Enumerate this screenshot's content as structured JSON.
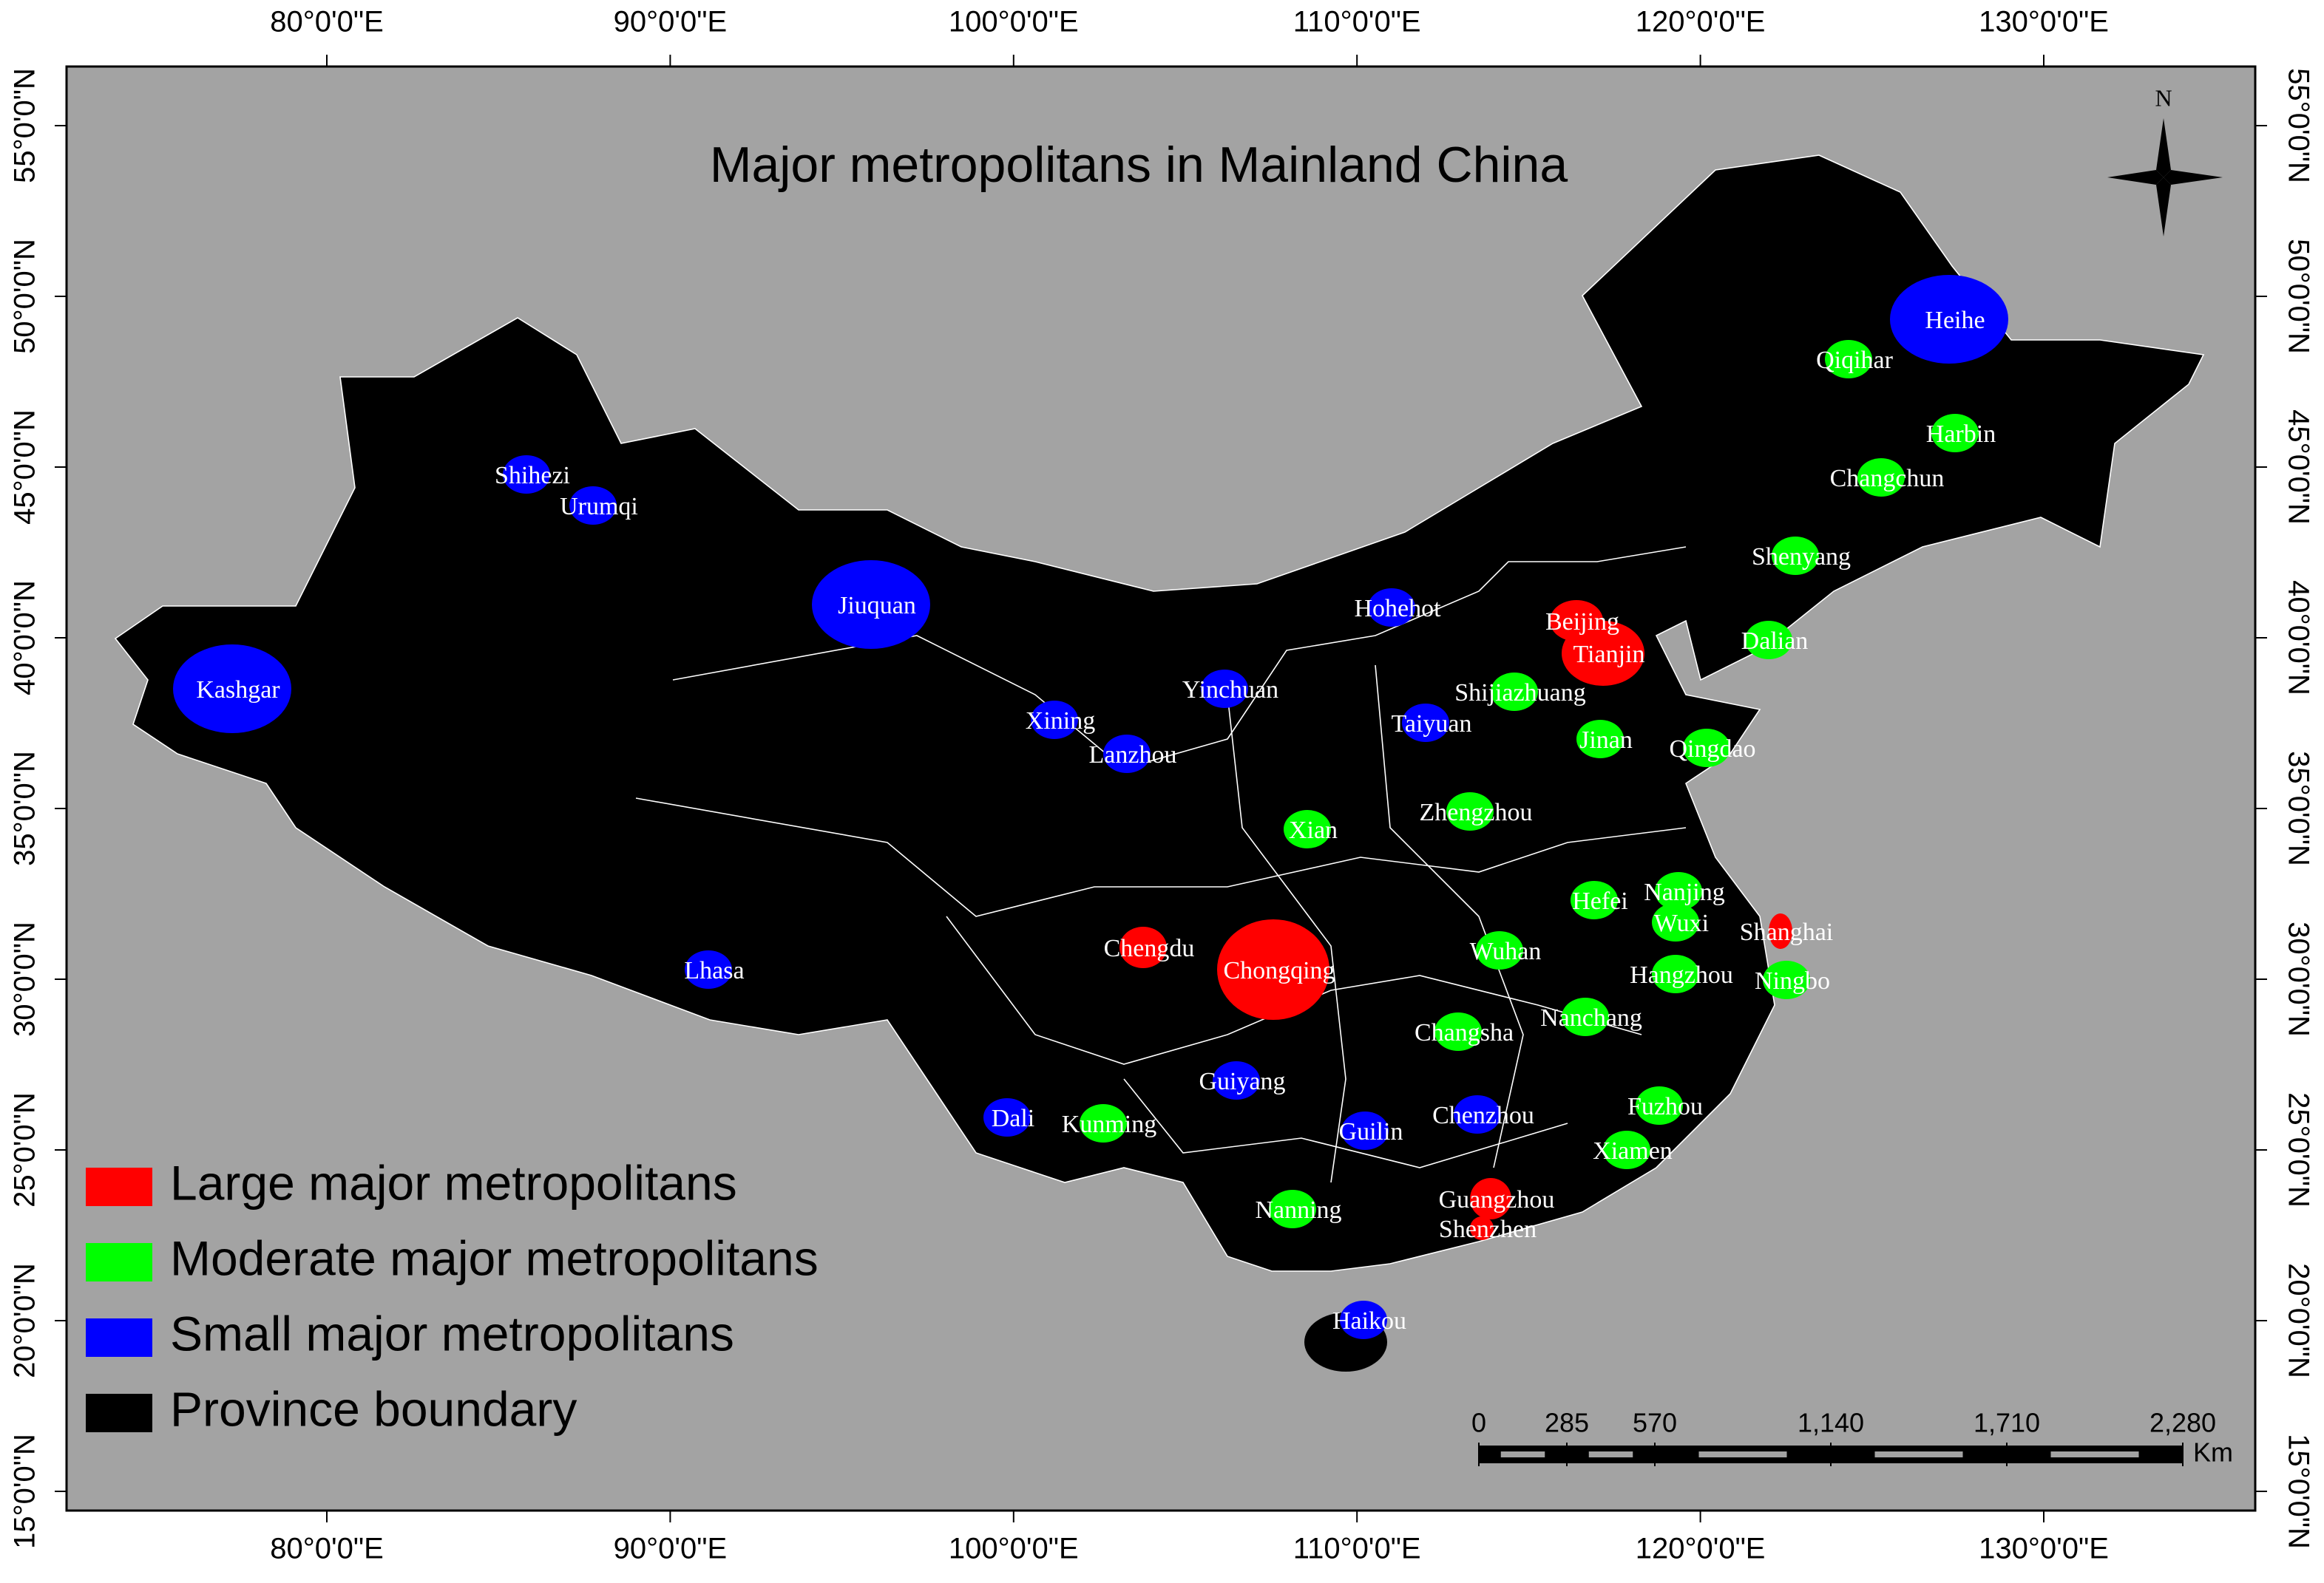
{
  "title": "Major metropolitans in Mainland China",
  "north_label": "N",
  "longitude_ticks": [
    {
      "value": 80,
      "label": "80°0'0\"E"
    },
    {
      "value": 90,
      "label": "90°0'0\"E"
    },
    {
      "value": 100,
      "label": "100°0'0\"E"
    },
    {
      "value": 110,
      "label": "110°0'0\"E"
    },
    {
      "value": 120,
      "label": "120°0'0\"E"
    },
    {
      "value": 130,
      "label": "130°0'0\"E"
    }
  ],
  "latitude_ticks": [
    {
      "value": 15,
      "label": "15°0'0\"N"
    },
    {
      "value": 20,
      "label": "20°0'0\"N"
    },
    {
      "value": 25,
      "label": "25°0'0\"N"
    },
    {
      "value": 30,
      "label": "30°0'0\"N"
    },
    {
      "value": 35,
      "label": "35°0'0\"N"
    },
    {
      "value": 40,
      "label": "40°0'0\"N"
    },
    {
      "value": 45,
      "label": "45°0'0\"N"
    },
    {
      "value": 50,
      "label": "50°0'0\"N"
    },
    {
      "value": 55,
      "label": "55°0'0\"N"
    }
  ],
  "legend": [
    {
      "label": "Large major metropolitans",
      "color": "#ff0000",
      "cities": [
        "Beijing",
        "Tianjin",
        "Chengdu",
        "Chongqing",
        "Shanghai",
        "Guangzhou",
        "Shenzhen"
      ]
    },
    {
      "label": "Moderate major metropolitans",
      "color": "#00ff00",
      "cities": [
        "Qiqihar",
        "Harbin",
        "Changchun",
        "Shenyang",
        "Dalian",
        "Shijiazhuang",
        "Jinan",
        "Qingdao",
        "Xian",
        "Zhengzhou",
        "Hefei",
        "Nanjing",
        "Wuxi",
        "Hangzhou",
        "Ningbo",
        "Wuhan",
        "Nanchang",
        "Changsha",
        "Fuzhou",
        "Xiamen",
        "Kunming",
        "Nanning"
      ]
    },
    {
      "label": "Small major metropolitans",
      "color": "#0000ff",
      "cities": [
        "Heihe",
        "Shihezi",
        "Urumqi",
        "Jiuquan",
        "Kashgar",
        "Hohehot",
        "Yinchuan",
        "Xining",
        "Lanzhou",
        "Taiyuan",
        "Lhasa",
        "Guiyang",
        "Dali",
        "Guilin",
        "Chenzhou",
        "Haikou"
      ]
    },
    {
      "label": "Province boundary",
      "color": "#000000"
    }
  ],
  "scale_bar": {
    "ticks": [
      0,
      285,
      570,
      {
        "value": 1140,
        "label": "1,140"
      },
      {
        "value": 1710,
        "label": "1,710"
      },
      {
        "value": 2280,
        "label": "2,280"
      }
    ],
    "unit": "Km"
  }
}
